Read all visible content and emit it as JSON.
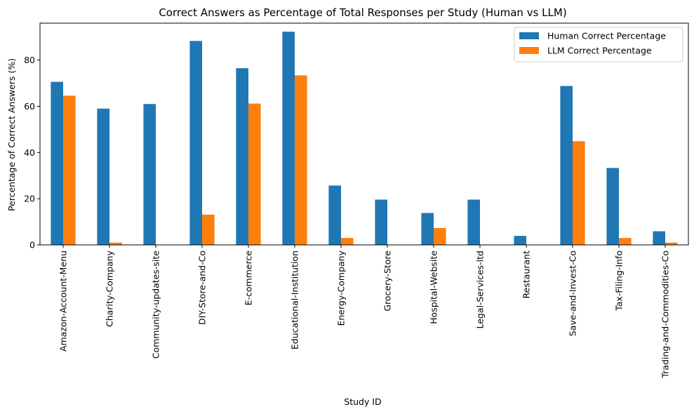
{
  "chart_data": {
    "type": "bar",
    "title": "Correct Answers as Percentage of Total Responses per Study (Human vs LLM)",
    "xlabel": "Study ID",
    "ylabel": "Percentage of Correct Answers (%)",
    "ylim": [
      0,
      96
    ],
    "yticks": [
      0,
      20,
      40,
      60,
      80
    ],
    "grid": false,
    "legend_position": "top-right",
    "categories": [
      "Amazon-Account-Menu",
      "Charity-Company",
      "Community-updates-site",
      "DIY-Store-and-Co",
      "E-commerce",
      "Educational-Institution",
      "Energy-Company",
      "Grocery-Store",
      "Hospital-Website",
      "Legal-Services-ltd",
      "Restaurant",
      "Save-and-Invest-Co",
      "Tax-Filing-Info",
      "Trading-and-Commodities-Co"
    ],
    "series": [
      {
        "name": "Human Correct Percentage",
        "color": "#1f77b4",
        "values": [
          70.6,
          59.0,
          61.0,
          88.3,
          76.5,
          92.3,
          25.7,
          19.6,
          13.8,
          19.6,
          3.9,
          68.8,
          33.3,
          5.9
        ]
      },
      {
        "name": "LLM Correct Percentage",
        "color": "#ff7f0e",
        "values": [
          64.6,
          1.0,
          0,
          13.1,
          61.2,
          73.4,
          3.0,
          0,
          7.3,
          0,
          0,
          44.9,
          3.0,
          1.0
        ]
      }
    ]
  }
}
